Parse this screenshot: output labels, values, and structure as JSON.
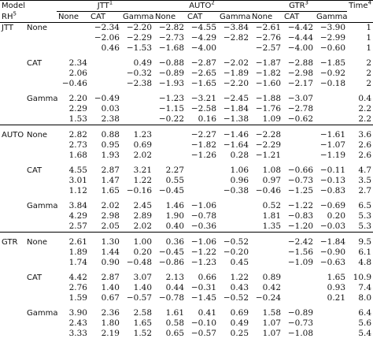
{
  "header": {
    "model": "Model",
    "rh": "RH",
    "rh_note": "5",
    "time": "Time",
    "time_note": "4",
    "groups": [
      {
        "name": "JTT",
        "note": "1"
      },
      {
        "name": "AUTO",
        "note": "2"
      },
      {
        "name": "GTR",
        "note": "3"
      }
    ],
    "subcolumns": [
      "None",
      "CAT",
      "Gamma",
      "None",
      "CAT",
      "Gamma",
      "None",
      "CAT",
      "Gamma"
    ]
  },
  "models": [
    {
      "name": "JTT",
      "blocks": [
        {
          "rh": "None",
          "rows": [
            [
              null,
              "−2.34",
              "−2.20",
              "−2.82",
              "−4.55",
              "−3.84",
              "−2.61",
              "−4.42",
              "−3.90",
              "1"
            ],
            [
              null,
              "−2.06",
              "−2.29",
              "−2.73",
              "−4.29",
              "−2.82",
              "−2.76",
              "−4.44",
              "−2.99",
              "1"
            ],
            [
              null,
              "0.46",
              "−1.53",
              "−1.68",
              "−4.00",
              null,
              "−2.57",
              "−4.00",
              "−0.60",
              "1"
            ]
          ]
        },
        {
          "rh": "CAT",
          "rows": [
            [
              "2.34",
              null,
              "0.49",
              "−0.88",
              "−2.87",
              "−2.02",
              "−1.87",
              "−2.88",
              "−1.85",
              "2"
            ],
            [
              "2.06",
              null,
              "−0.32",
              "−0.89",
              "−2.65",
              "−1.89",
              "−1.82",
              "−2.98",
              "−0.92",
              "2"
            ],
            [
              "−0.46",
              null,
              "−2.38",
              "−1.93",
              "−1.65",
              "−2.20",
              "−1.60",
              "−2.17",
              "−0.18",
              "2"
            ]
          ]
        },
        {
          "rh": "Gamma",
          "rows": [
            [
              "2.20",
              "−0.49",
              null,
              "−1.23",
              "−3.21",
              "−2.45",
              "−1.88",
              "−3.07",
              null,
              "0.4"
            ],
            [
              "2.29",
              "0.03",
              null,
              "−1.15",
              "−2.58",
              "−1.84",
              "−1.76",
              "−2.78",
              null,
              "2.2"
            ],
            [
              "1.53",
              "2.38",
              null,
              "−0.22",
              "0.16",
              "−1.38",
              "1.09",
              "−0.62",
              null,
              "2.2"
            ]
          ]
        }
      ]
    },
    {
      "name": "AUTO",
      "blocks": [
        {
          "rh": "None",
          "rows": [
            [
              "2.82",
              "0.88",
              "1.23",
              null,
              "−2.27",
              "−1.46",
              "−2.28",
              null,
              "−1.61",
              "3.6"
            ],
            [
              "2.73",
              "0.95",
              "0.69",
              null,
              "−1.82",
              "−1.64",
              "−2.29",
              null,
              "−1.07",
              "2.6"
            ],
            [
              "1.68",
              "1.93",
              "2.02",
              null,
              "−1.26",
              "0.28",
              "−1.21",
              null,
              "−1.19",
              "2.6"
            ]
          ]
        },
        {
          "rh": "CAT",
          "rows": [
            [
              "4.55",
              "2.87",
              "3.21",
              "2.27",
              null,
              "1.06",
              "1.08",
              "−0.66",
              "−0.11",
              "4.7"
            ],
            [
              "3.01",
              "1.47",
              "1.22",
              "0.55",
              null,
              "0.96",
              "0.97",
              "−0.73",
              "−0.13",
              "3.5"
            ],
            [
              "1.12",
              "1.65",
              "−0.16",
              "−0.45",
              null,
              "−0.38",
              "−0.46",
              "−1.25",
              "−0.83",
              "2.7"
            ]
          ]
        },
        {
          "rh": "Gamma",
          "rows": [
            [
              "3.84",
              "2.02",
              "2.45",
              "1.46",
              "−1.06",
              null,
              "0.52",
              "−1.22",
              "−0.69",
              "6.5"
            ],
            [
              "4.29",
              "2.98",
              "2.89",
              "1.90",
              "−0.78",
              null,
              "1.81",
              "−0.83",
              "0.20",
              "5.3"
            ],
            [
              "2.57",
              "2.05",
              "2.02",
              "0.40",
              "−0.36",
              null,
              "1.35",
              "−1.20",
              "−0.03",
              "5.3"
            ]
          ]
        }
      ]
    },
    {
      "name": "GTR",
      "blocks": [
        {
          "rh": "None",
          "rows": [
            [
              "2.61",
              "1.30",
              "1.00",
              "0.36",
              "−1.06",
              "−0.52",
              null,
              "−2.42",
              "−1.84",
              "9.5"
            ],
            [
              "1.89",
              "1.44",
              "0.20",
              "−0.45",
              "−1.22",
              "−0.20",
              null,
              "−1.56",
              "−0.90",
              "6.1"
            ],
            [
              "1.74",
              "0.90",
              "−0.48",
              "−0.86",
              "−1.23",
              "0.45",
              null,
              "−1.09",
              "−0.63",
              "4.8"
            ]
          ]
        },
        {
          "rh": "CAT",
          "rows": [
            [
              "4.42",
              "2.87",
              "3.07",
              "2.13",
              "0.66",
              "1.22",
              "0.89",
              null,
              "1.65",
              "10.9"
            ],
            [
              "2.76",
              "1.40",
              "1.40",
              "0.44",
              "−0.31",
              "0.43",
              "0.42",
              null,
              "0.93",
              "7.4"
            ],
            [
              "1.59",
              "0.67",
              "−0.57",
              "−0.78",
              "−1.45",
              "−0.52",
              "−0.24",
              null,
              "0.21",
              "8.0"
            ]
          ]
        },
        {
          "rh": "Gamma",
          "rows": [
            [
              "3.90",
              "2.36",
              "2.58",
              "1.61",
              "0.41",
              "0.69",
              "1.58",
              "−0.89",
              null,
              "6.4"
            ],
            [
              "2.43",
              "1.80",
              "1.65",
              "0.58",
              "−0.10",
              "0.49",
              "1.07",
              "−0.73",
              null,
              "5.6"
            ],
            [
              "3.33",
              "2.19",
              "1.52",
              "0.65",
              "−0.57",
              "0.25",
              "1.07",
              "−1.08",
              null,
              "5.4"
            ]
          ]
        }
      ]
    }
  ]
}
